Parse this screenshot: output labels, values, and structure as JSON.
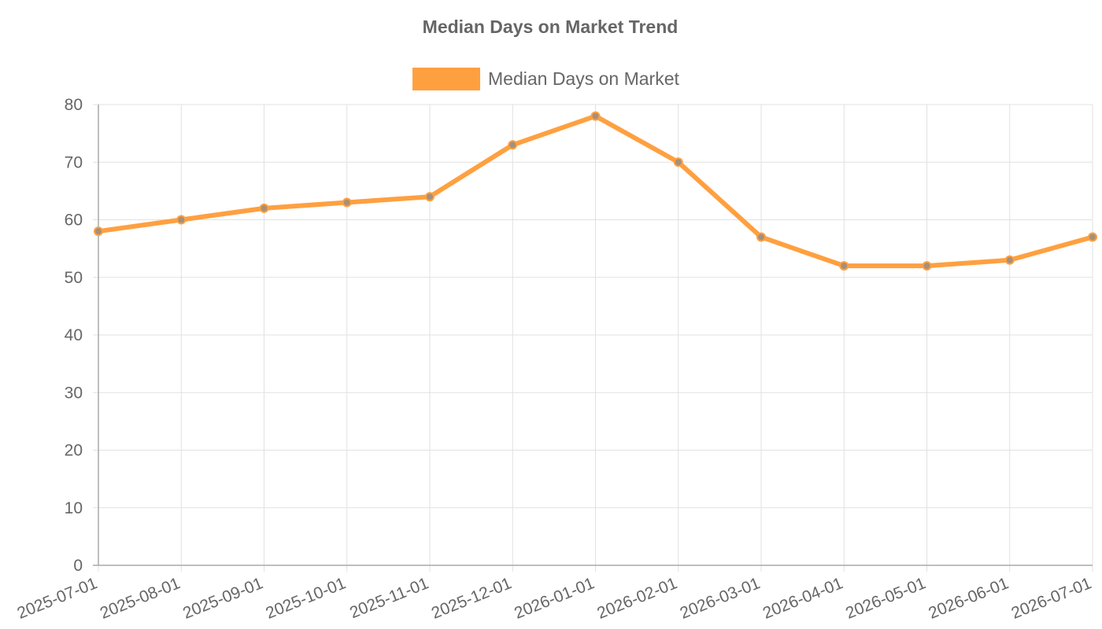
{
  "chart_data": {
    "type": "line",
    "title": "Median Days on Market Trend",
    "categories": [
      "2025-07-01",
      "2025-08-01",
      "2025-09-01",
      "2025-10-01",
      "2025-11-01",
      "2025-12-01",
      "2026-01-01",
      "2026-02-01",
      "2026-03-01",
      "2026-04-01",
      "2026-05-01",
      "2026-06-01",
      "2026-07-01"
    ],
    "series": [
      {
        "name": "Median Days on Market",
        "values": [
          58,
          60,
          62,
          63,
          64,
          73,
          78,
          70,
          57,
          52,
          52,
          53,
          57
        ],
        "color": "#ffa040"
      }
    ],
    "ylim": [
      0,
      80
    ],
    "yticks": [
      0,
      10,
      20,
      30,
      40,
      50,
      60,
      70,
      80
    ],
    "grid": true,
    "legend_position": "top-center"
  }
}
